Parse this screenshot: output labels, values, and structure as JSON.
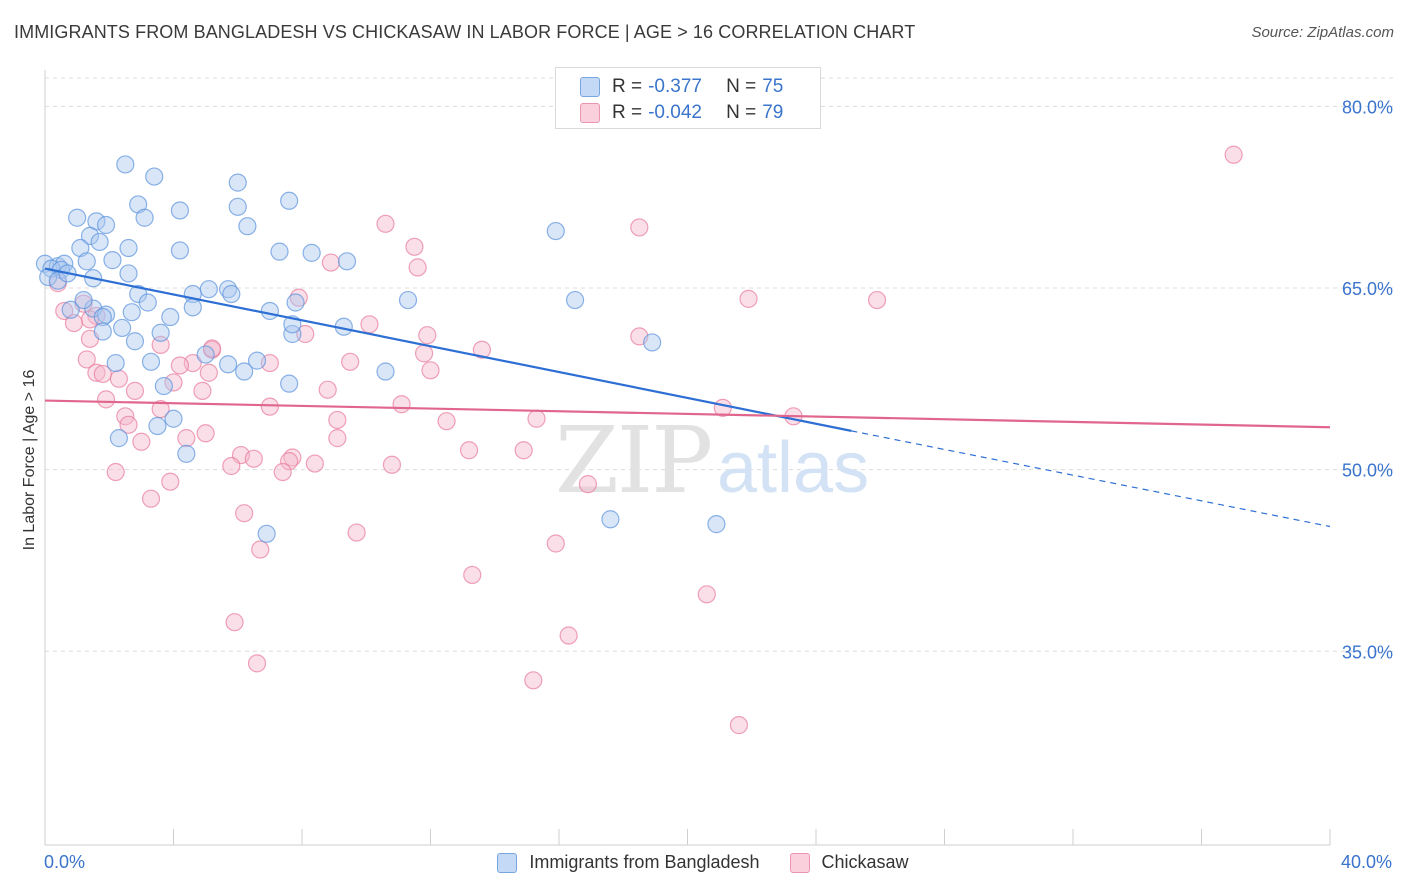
{
  "header": {
    "title": "IMMIGRANTS FROM BANGLADESH VS CHICKASAW IN LABOR FORCE | AGE > 16 CORRELATION CHART",
    "source": "Source: ZipAtlas.com"
  },
  "stats_legend": [
    {
      "r_label": "R =",
      "r_value": "-0.377",
      "n_label": "N =",
      "n_value": "75",
      "color": "#aac8f0"
    },
    {
      "r_label": "R =",
      "r_value": "-0.042",
      "n_label": "N =",
      "n_value": "79",
      "color": "#f5b8cb"
    }
  ],
  "watermark": {
    "zip": "ZIP",
    "atlas": "atlas"
  },
  "chart_data": {
    "type": "scatter",
    "xlabel": "",
    "ylabel": "In Labor Force | Age > 16",
    "xlim": [
      0,
      40
    ],
    "ylim": [
      19,
      83
    ],
    "x_tick_labels": [
      "0.0%",
      "40.0%"
    ],
    "y_ticks": [
      35,
      50,
      65,
      80
    ],
    "y_tick_labels": [
      "35.0%",
      "50.0%",
      "65.0%",
      "80.0%"
    ],
    "grid": true,
    "legend_position": "bottom",
    "series": [
      {
        "name": "Immigrants from Bangladesh",
        "color": "#5b93dd",
        "fill": "#aac8f0",
        "trend": {
          "x0": 0,
          "y0": 66.6,
          "x1": 25.1,
          "y1": 53.2,
          "dash_to_x": 40,
          "dash_to_y": 45.3
        },
        "points": [
          [
            2.5,
            75.2
          ],
          [
            3.4,
            74.2
          ],
          [
            6.0,
            73.7
          ],
          [
            7.6,
            72.2
          ],
          [
            2.9,
            71.9
          ],
          [
            6.0,
            71.7
          ],
          [
            4.2,
            71.4
          ],
          [
            3.1,
            70.8
          ],
          [
            1.0,
            70.8
          ],
          [
            1.6,
            70.5
          ],
          [
            6.3,
            70.1
          ],
          [
            1.9,
            70.2
          ],
          [
            15.9,
            69.7
          ],
          [
            1.4,
            69.3
          ],
          [
            1.7,
            68.8
          ],
          [
            4.2,
            68.1
          ],
          [
            1.1,
            68.3
          ],
          [
            2.6,
            68.3
          ],
          [
            7.3,
            68.0
          ],
          [
            8.3,
            67.9
          ],
          [
            2.1,
            67.3
          ],
          [
            1.3,
            67.2
          ],
          [
            0.0,
            67.0
          ],
          [
            0.4,
            66.8
          ],
          [
            0.6,
            67.0
          ],
          [
            0.2,
            66.6
          ],
          [
            0.5,
            66.5
          ],
          [
            0.1,
            65.9
          ],
          [
            0.4,
            65.6
          ],
          [
            0.7,
            66.2
          ],
          [
            1.5,
            65.8
          ],
          [
            2.6,
            66.2
          ],
          [
            5.1,
            64.9
          ],
          [
            5.7,
            64.9
          ],
          [
            4.6,
            64.5
          ],
          [
            5.8,
            64.5
          ],
          [
            2.9,
            64.5
          ],
          [
            3.2,
            63.8
          ],
          [
            11.3,
            64.0
          ],
          [
            16.5,
            64.0
          ],
          [
            1.5,
            63.3
          ],
          [
            0.8,
            63.2
          ],
          [
            4.6,
            63.4
          ],
          [
            2.7,
            63.0
          ],
          [
            1.9,
            62.8
          ],
          [
            7.0,
            63.1
          ],
          [
            7.8,
            63.8
          ],
          [
            3.9,
            62.6
          ],
          [
            1.8,
            62.6
          ],
          [
            1.8,
            61.4
          ],
          [
            2.4,
            61.7
          ],
          [
            3.6,
            61.3
          ],
          [
            7.7,
            61.2
          ],
          [
            9.3,
            61.8
          ],
          [
            18.9,
            60.5
          ],
          [
            2.8,
            60.6
          ],
          [
            5.0,
            59.5
          ],
          [
            2.2,
            58.8
          ],
          [
            3.3,
            58.9
          ],
          [
            6.6,
            59.0
          ],
          [
            6.2,
            58.1
          ],
          [
            10.6,
            58.1
          ],
          [
            7.6,
            57.1
          ],
          [
            3.7,
            56.9
          ],
          [
            4.0,
            54.2
          ],
          [
            3.5,
            53.6
          ],
          [
            2.3,
            52.6
          ],
          [
            4.4,
            51.3
          ],
          [
            17.6,
            45.9
          ],
          [
            20.9,
            45.5
          ],
          [
            6.9,
            44.7
          ],
          [
            7.7,
            62.0
          ],
          [
            9.4,
            67.2
          ],
          [
            5.7,
            58.7
          ],
          [
            1.2,
            64.0
          ]
        ]
      },
      {
        "name": "Chickasaw",
        "color": "#e87a9b",
        "fill": "#f5b8cb",
        "trend": {
          "x0": 0,
          "y0": 55.7,
          "x1": 40,
          "y1": 53.5
        },
        "points": [
          [
            37.0,
            76.0
          ],
          [
            18.5,
            70.0
          ],
          [
            10.6,
            70.3
          ],
          [
            11.5,
            68.4
          ],
          [
            8.9,
            67.1
          ],
          [
            11.6,
            66.7
          ],
          [
            0.4,
            65.4
          ],
          [
            7.9,
            64.2
          ],
          [
            21.9,
            64.1
          ],
          [
            25.9,
            64.0
          ],
          [
            1.2,
            63.7
          ],
          [
            0.6,
            63.1
          ],
          [
            1.6,
            62.7
          ],
          [
            1.4,
            62.4
          ],
          [
            0.9,
            62.1
          ],
          [
            10.1,
            62.0
          ],
          [
            8.1,
            61.2
          ],
          [
            11.9,
            61.1
          ],
          [
            18.5,
            61.0
          ],
          [
            1.4,
            60.8
          ],
          [
            3.6,
            60.3
          ],
          [
            13.6,
            59.9
          ],
          [
            5.2,
            59.9
          ],
          [
            11.8,
            59.6
          ],
          [
            1.3,
            59.1
          ],
          [
            9.5,
            58.9
          ],
          [
            4.6,
            58.8
          ],
          [
            7.0,
            58.8
          ],
          [
            4.2,
            58.6
          ],
          [
            1.6,
            58.0
          ],
          [
            5.1,
            58.0
          ],
          [
            2.3,
            57.5
          ],
          [
            4.0,
            57.2
          ],
          [
            8.8,
            56.6
          ],
          [
            2.8,
            56.5
          ],
          [
            4.9,
            56.5
          ],
          [
            1.9,
            55.8
          ],
          [
            11.1,
            55.4
          ],
          [
            7.0,
            55.2
          ],
          [
            21.1,
            55.1
          ],
          [
            23.3,
            54.4
          ],
          [
            2.5,
            54.4
          ],
          [
            9.1,
            54.1
          ],
          [
            12.5,
            54.0
          ],
          [
            15.3,
            54.2
          ],
          [
            2.6,
            53.7
          ],
          [
            5.0,
            53.0
          ],
          [
            4.4,
            52.6
          ],
          [
            9.1,
            52.6
          ],
          [
            3.0,
            52.3
          ],
          [
            13.2,
            51.6
          ],
          [
            14.9,
            51.6
          ],
          [
            6.1,
            51.2
          ],
          [
            7.7,
            51.0
          ],
          [
            6.5,
            50.9
          ],
          [
            7.6,
            50.7
          ],
          [
            8.4,
            50.5
          ],
          [
            5.8,
            50.3
          ],
          [
            10.8,
            50.4
          ],
          [
            2.2,
            49.8
          ],
          [
            7.4,
            49.8
          ],
          [
            3.9,
            49.0
          ],
          [
            16.9,
            48.8
          ],
          [
            3.3,
            47.6
          ],
          [
            6.2,
            46.4
          ],
          [
            9.7,
            44.8
          ],
          [
            15.9,
            43.9
          ],
          [
            6.7,
            43.4
          ],
          [
            13.3,
            41.3
          ],
          [
            20.6,
            39.7
          ],
          [
            16.3,
            36.3
          ],
          [
            5.9,
            37.4
          ],
          [
            6.6,
            34.0
          ],
          [
            15.2,
            32.6
          ],
          [
            21.6,
            28.9
          ],
          [
            5.2,
            60.0
          ],
          [
            3.6,
            55.0
          ],
          [
            12.0,
            58.2
          ],
          [
            1.8,
            57.9
          ]
        ]
      }
    ]
  }
}
